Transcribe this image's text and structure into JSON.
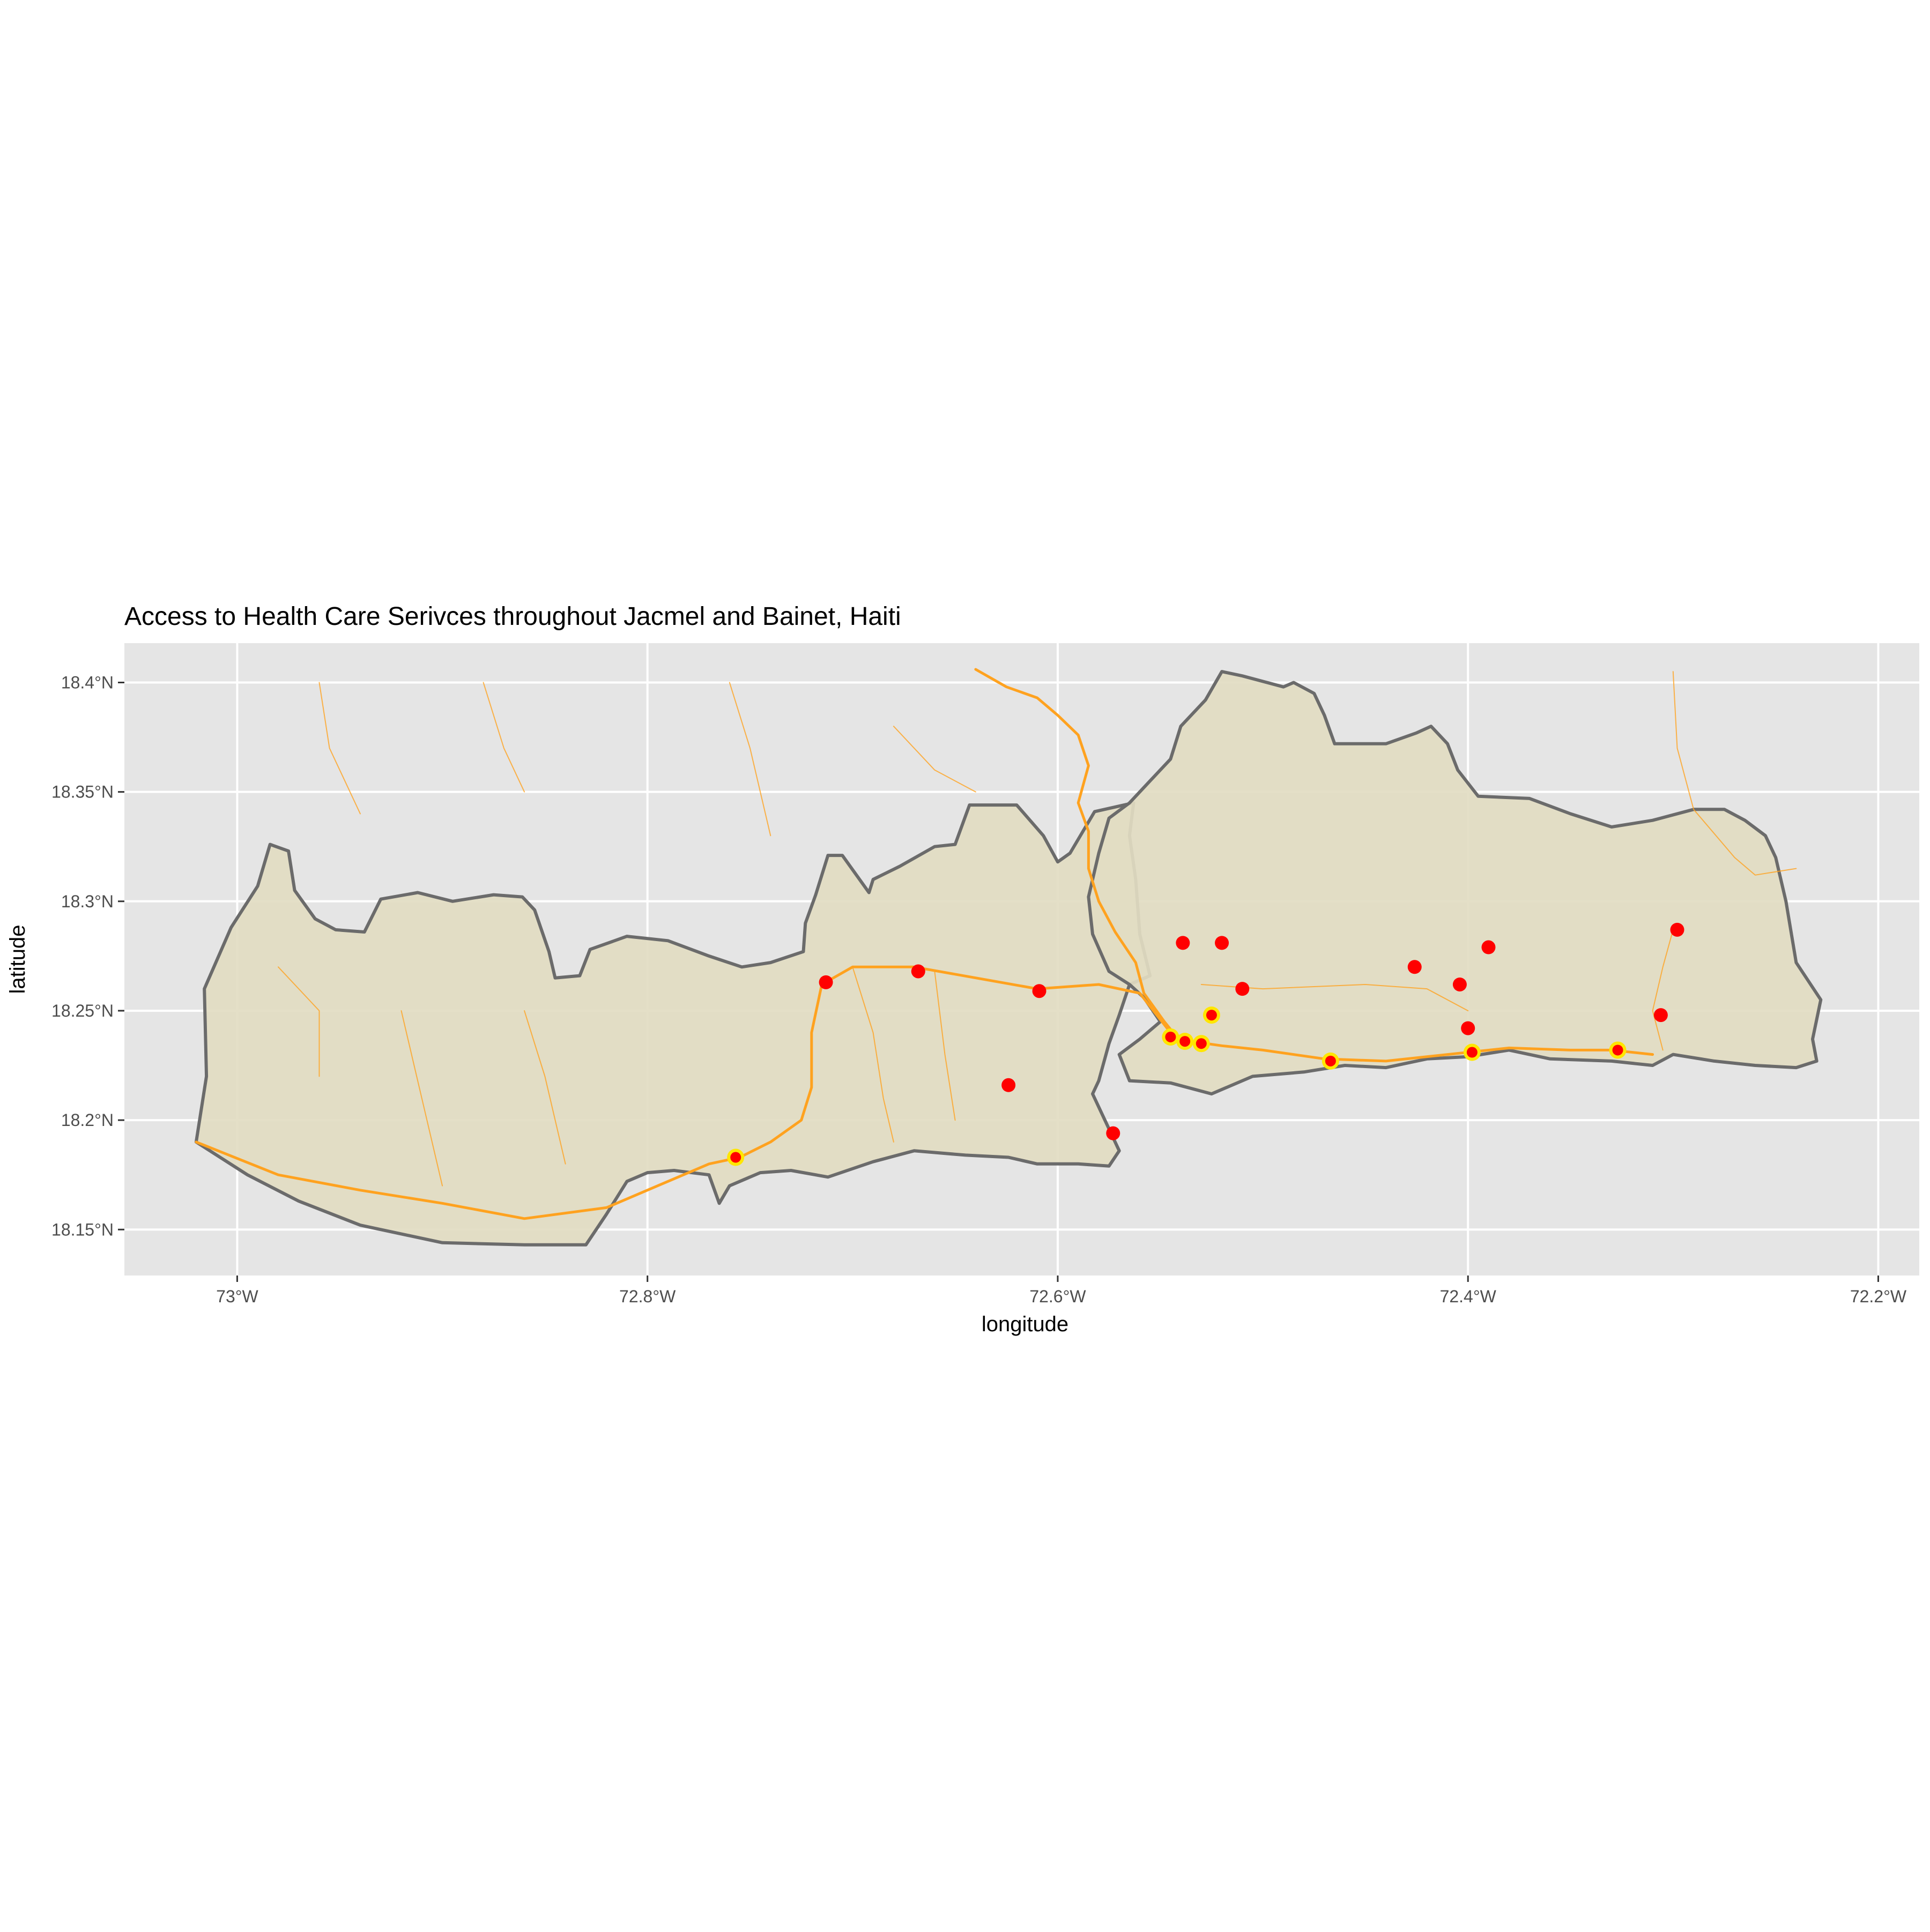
{
  "title": "Access to Health Care Serivces throughout Jacmel and Bainet, Haiti",
  "colors": {
    "panel_bg": "#e5e5e5",
    "grid": "#ffffff",
    "region_fill": "#e2dcc2",
    "region_border": "#6b6b6b",
    "roads": "#ffa21f",
    "facility_point": "#ff0000",
    "facility_halo": "#ffe600"
  },
  "chart_data": {
    "type": "scatter",
    "title": "Access to Health Care Serivces throughout Jacmel and Bainet, Haiti",
    "xlabel": "longitude",
    "ylabel": "latitude",
    "xlim": [
      -73.055,
      -72.18
    ],
    "ylim": [
      18.129,
      18.418
    ],
    "grid": true,
    "x_ticks": [
      {
        "value": -73.0,
        "label": "73°W"
      },
      {
        "value": -72.8,
        "label": "72.8°W"
      },
      {
        "value": -72.6,
        "label": "72.6°W"
      },
      {
        "value": -72.4,
        "label": "72.4°W"
      },
      {
        "value": -72.2,
        "label": "72.2°W"
      }
    ],
    "y_ticks": [
      {
        "value": 18.15,
        "label": "18.15°N"
      },
      {
        "value": 18.2,
        "label": "18.2°N"
      },
      {
        "value": 18.25,
        "label": "18.25°N"
      },
      {
        "value": 18.3,
        "label": "18.3°N"
      },
      {
        "value": 18.35,
        "label": "18.35°N"
      },
      {
        "value": 18.4,
        "label": "18.4°N"
      }
    ],
    "boundaries": [
      {
        "name": "west",
        "points": [
          [
            -73.02,
            18.19
          ],
          [
            -73.015,
            18.22
          ],
          [
            -73.016,
            18.26
          ],
          [
            -73.003,
            18.288
          ],
          [
            -72.99,
            18.307
          ],
          [
            -72.984,
            18.326
          ],
          [
            -72.975,
            18.323
          ],
          [
            -72.972,
            18.305
          ],
          [
            -72.962,
            18.292
          ],
          [
            -72.952,
            18.287
          ],
          [
            -72.938,
            18.286
          ],
          [
            -72.93,
            18.301
          ],
          [
            -72.912,
            18.304
          ],
          [
            -72.895,
            18.3
          ],
          [
            -72.875,
            18.303
          ],
          [
            -72.861,
            18.302
          ],
          [
            -72.855,
            18.296
          ],
          [
            -72.848,
            18.277
          ],
          [
            -72.845,
            18.265
          ],
          [
            -72.833,
            18.266
          ],
          [
            -72.828,
            18.278
          ],
          [
            -72.81,
            18.284
          ],
          [
            -72.79,
            18.282
          ],
          [
            -72.77,
            18.275
          ],
          [
            -72.754,
            18.27
          ],
          [
            -72.74,
            18.272
          ],
          [
            -72.724,
            18.277
          ],
          [
            -72.723,
            18.29
          ],
          [
            -72.718,
            18.303
          ],
          [
            -72.712,
            18.321
          ],
          [
            -72.705,
            18.321
          ],
          [
            -72.692,
            18.304
          ],
          [
            -72.69,
            18.31
          ],
          [
            -72.677,
            18.316
          ],
          [
            -72.66,
            18.325
          ],
          [
            -72.65,
            18.326
          ],
          [
            -72.643,
            18.344
          ],
          [
            -72.62,
            18.344
          ],
          [
            -72.607,
            18.33
          ],
          [
            -72.6,
            18.318
          ],
          [
            -72.594,
            18.322
          ],
          [
            -72.582,
            18.341
          ],
          [
            -72.563,
            18.345
          ],
          [
            -72.565,
            18.33
          ],
          [
            -72.562,
            18.31
          ],
          [
            -72.56,
            18.285
          ],
          [
            -72.555,
            18.266
          ],
          [
            -72.565,
            18.262
          ],
          [
            -72.57,
            18.248
          ],
          [
            -72.575,
            18.235
          ],
          [
            -72.58,
            18.218
          ],
          [
            -72.583,
            18.212
          ],
          [
            -72.576,
            18.198
          ],
          [
            -72.57,
            18.186
          ],
          [
            -72.575,
            18.179
          ],
          [
            -72.59,
            18.18
          ],
          [
            -72.61,
            18.18
          ],
          [
            -72.624,
            18.183
          ],
          [
            -72.645,
            18.184
          ],
          [
            -72.67,
            18.186
          ],
          [
            -72.69,
            18.181
          ],
          [
            -72.712,
            18.174
          ],
          [
            -72.73,
            18.177
          ],
          [
            -72.745,
            18.176
          ],
          [
            -72.76,
            18.17
          ],
          [
            -72.765,
            18.162
          ],
          [
            -72.77,
            18.175
          ],
          [
            -72.787,
            18.177
          ],
          [
            -72.8,
            18.176
          ],
          [
            -72.81,
            18.172
          ],
          [
            -72.82,
            18.157
          ],
          [
            -72.83,
            18.143
          ],
          [
            -72.86,
            18.143
          ],
          [
            -72.9,
            18.144
          ],
          [
            -72.94,
            18.152
          ],
          [
            -72.97,
            18.163
          ],
          [
            -72.995,
            18.175
          ],
          [
            -73.02,
            18.19
          ]
        ]
      },
      {
        "name": "east",
        "points": [
          [
            -72.57,
            18.23
          ],
          [
            -72.565,
            18.218
          ],
          [
            -72.545,
            18.217
          ],
          [
            -72.525,
            18.212
          ],
          [
            -72.505,
            18.22
          ],
          [
            -72.48,
            18.222
          ],
          [
            -72.46,
            18.225
          ],
          [
            -72.44,
            18.224
          ],
          [
            -72.42,
            18.228
          ],
          [
            -72.4,
            18.229
          ],
          [
            -72.38,
            18.232
          ],
          [
            -72.36,
            18.228
          ],
          [
            -72.33,
            18.227
          ],
          [
            -72.31,
            18.225
          ],
          [
            -72.3,
            18.23
          ],
          [
            -72.28,
            18.227
          ],
          [
            -72.26,
            18.225
          ],
          [
            -72.24,
            18.224
          ],
          [
            -72.23,
            18.227
          ],
          [
            -72.232,
            18.237
          ],
          [
            -72.228,
            18.255
          ],
          [
            -72.24,
            18.272
          ],
          [
            -72.245,
            18.3
          ],
          [
            -72.25,
            18.32
          ],
          [
            -72.255,
            18.33
          ],
          [
            -72.265,
            18.337
          ],
          [
            -72.275,
            18.342
          ],
          [
            -72.29,
            18.342
          ],
          [
            -72.31,
            18.337
          ],
          [
            -72.33,
            18.334
          ],
          [
            -72.35,
            18.34
          ],
          [
            -72.37,
            18.347
          ],
          [
            -72.395,
            18.348
          ],
          [
            -72.405,
            18.36
          ],
          [
            -72.41,
            18.372
          ],
          [
            -72.418,
            18.38
          ],
          [
            -72.425,
            18.377
          ],
          [
            -72.44,
            18.372
          ],
          [
            -72.465,
            18.372
          ],
          [
            -72.47,
            18.385
          ],
          [
            -72.475,
            18.395
          ],
          [
            -72.485,
            18.4
          ],
          [
            -72.49,
            18.398
          ],
          [
            -72.51,
            18.403
          ],
          [
            -72.52,
            18.405
          ],
          [
            -72.528,
            18.392
          ],
          [
            -72.54,
            18.38
          ],
          [
            -72.545,
            18.365
          ],
          [
            -72.555,
            18.355
          ],
          [
            -72.565,
            18.345
          ],
          [
            -72.575,
            18.338
          ],
          [
            -72.58,
            18.322
          ],
          [
            -72.585,
            18.302
          ],
          [
            -72.583,
            18.285
          ],
          [
            -72.575,
            18.268
          ],
          [
            -72.565,
            18.262
          ],
          [
            -72.558,
            18.256
          ],
          [
            -72.55,
            18.245
          ],
          [
            -72.56,
            18.237
          ],
          [
            -72.57,
            18.23
          ]
        ]
      }
    ],
    "roads": [
      {
        "name": "main-road-1",
        "major": true,
        "points": [
          [
            -73.02,
            18.19
          ],
          [
            -72.98,
            18.175
          ],
          [
            -72.94,
            18.168
          ],
          [
            -72.9,
            18.162
          ],
          [
            -72.86,
            18.155
          ],
          [
            -72.82,
            18.16
          ],
          [
            -72.795,
            18.17
          ],
          [
            -72.77,
            18.18
          ],
          [
            -72.755,
            18.183
          ],
          [
            -72.74,
            18.19
          ],
          [
            -72.725,
            18.2
          ],
          [
            -72.72,
            18.215
          ],
          [
            -72.72,
            18.24
          ],
          [
            -72.715,
            18.262
          ],
          [
            -72.7,
            18.27
          ],
          [
            -72.67,
            18.27
          ],
          [
            -72.64,
            18.265
          ],
          [
            -72.61,
            18.26
          ],
          [
            -72.58,
            18.262
          ],
          [
            -72.56,
            18.258
          ],
          [
            -72.545,
            18.24
          ],
          [
            -72.535,
            18.236
          ],
          [
            -72.52,
            18.234
          ],
          [
            -72.5,
            18.232
          ],
          [
            -72.47,
            18.228
          ],
          [
            -72.44,
            18.227
          ],
          [
            -72.41,
            18.23
          ],
          [
            -72.38,
            18.233
          ],
          [
            -72.35,
            18.232
          ],
          [
            -72.33,
            18.232
          ],
          [
            -72.31,
            18.23
          ]
        ]
      },
      {
        "name": "main-road-2",
        "major": true,
        "points": [
          [
            -72.64,
            18.406
          ],
          [
            -72.625,
            18.398
          ],
          [
            -72.61,
            18.393
          ],
          [
            -72.6,
            18.385
          ],
          [
            -72.59,
            18.376
          ],
          [
            -72.585,
            18.362
          ],
          [
            -72.59,
            18.345
          ],
          [
            -72.585,
            18.332
          ],
          [
            -72.585,
            18.315
          ],
          [
            -72.58,
            18.3
          ],
          [
            -72.572,
            18.286
          ],
          [
            -72.562,
            18.272
          ],
          [
            -72.558,
            18.258
          ],
          [
            -72.548,
            18.245
          ],
          [
            -72.542,
            18.238
          ]
        ]
      },
      {
        "name": "road-3",
        "major": false,
        "points": [
          [
            -72.3,
            18.405
          ],
          [
            -72.298,
            18.37
          ],
          [
            -72.29,
            18.342
          ],
          [
            -72.27,
            18.32
          ],
          [
            -72.26,
            18.312
          ],
          [
            -72.24,
            18.315
          ]
        ]
      },
      {
        "name": "road-4",
        "major": false,
        "points": [
          [
            -72.3,
            18.287
          ],
          [
            -72.305,
            18.27
          ],
          [
            -72.31,
            18.25
          ],
          [
            -72.305,
            18.232
          ]
        ]
      },
      {
        "name": "road-5",
        "major": false,
        "points": [
          [
            -72.4,
            18.25
          ],
          [
            -72.42,
            18.26
          ],
          [
            -72.45,
            18.262
          ],
          [
            -72.5,
            18.26
          ],
          [
            -72.53,
            18.262
          ]
        ]
      },
      {
        "name": "road-6",
        "major": false,
        "points": [
          [
            -72.7,
            18.27
          ],
          [
            -72.69,
            18.24
          ],
          [
            -72.685,
            18.21
          ],
          [
            -72.68,
            18.19
          ]
        ]
      },
      {
        "name": "road-7",
        "major": false,
        "points": [
          [
            -72.66,
            18.268
          ],
          [
            -72.655,
            18.23
          ],
          [
            -72.65,
            18.2
          ]
        ]
      },
      {
        "name": "road-8",
        "major": false,
        "points": [
          [
            -72.88,
            18.4
          ],
          [
            -72.87,
            18.37
          ],
          [
            -72.86,
            18.35
          ]
        ]
      },
      {
        "name": "road-9",
        "major": false,
        "points": [
          [
            -72.96,
            18.4
          ],
          [
            -72.955,
            18.37
          ],
          [
            -72.94,
            18.34
          ]
        ]
      },
      {
        "name": "road-10",
        "major": false,
        "points": [
          [
            -72.76,
            18.4
          ],
          [
            -72.75,
            18.37
          ],
          [
            -72.74,
            18.33
          ]
        ]
      },
      {
        "name": "road-11",
        "major": false,
        "points": [
          [
            -72.68,
            18.38
          ],
          [
            -72.66,
            18.36
          ],
          [
            -72.64,
            18.35
          ]
        ]
      },
      {
        "name": "road-12",
        "major": false,
        "points": [
          [
            -72.98,
            18.27
          ],
          [
            -72.96,
            18.25
          ],
          [
            -72.96,
            18.22
          ]
        ]
      },
      {
        "name": "road-13",
        "major": false,
        "points": [
          [
            -72.86,
            18.25
          ],
          [
            -72.85,
            18.22
          ],
          [
            -72.84,
            18.18
          ]
        ]
      },
      {
        "name": "road-14",
        "major": false,
        "points": [
          [
            -72.92,
            18.25
          ],
          [
            -72.91,
            18.21
          ],
          [
            -72.9,
            18.17
          ]
        ]
      }
    ],
    "facilities": [
      {
        "x": -72.713,
        "y": 18.263
      },
      {
        "x": -72.668,
        "y": 18.268
      },
      {
        "x": -72.609,
        "y": 18.259
      },
      {
        "x": -72.624,
        "y": 18.216
      },
      {
        "x": -72.573,
        "y": 18.194
      },
      {
        "x": -72.757,
        "y": 18.183,
        "halo": true
      },
      {
        "x": -72.539,
        "y": 18.281
      },
      {
        "x": -72.52,
        "y": 18.281
      },
      {
        "x": -72.51,
        "y": 18.26
      },
      {
        "x": -72.525,
        "y": 18.248,
        "halo": true
      },
      {
        "x": -72.545,
        "y": 18.238,
        "halo": true
      },
      {
        "x": -72.538,
        "y": 18.236,
        "halo": true
      },
      {
        "x": -72.53,
        "y": 18.235,
        "halo": true
      },
      {
        "x": -72.467,
        "y": 18.227,
        "halo": true
      },
      {
        "x": -72.426,
        "y": 18.27
      },
      {
        "x": -72.404,
        "y": 18.262
      },
      {
        "x": -72.39,
        "y": 18.279
      },
      {
        "x": -72.4,
        "y": 18.242
      },
      {
        "x": -72.398,
        "y": 18.231,
        "halo": true
      },
      {
        "x": -72.327,
        "y": 18.232,
        "halo": true
      },
      {
        "x": -72.306,
        "y": 18.248
      },
      {
        "x": -72.298,
        "y": 18.287
      }
    ]
  }
}
